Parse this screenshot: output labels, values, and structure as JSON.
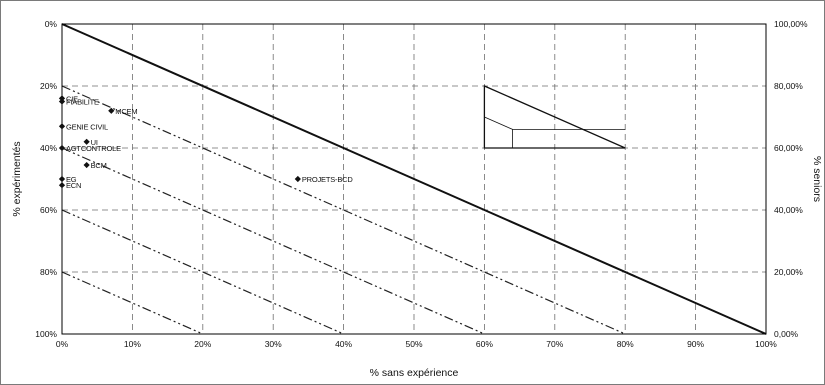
{
  "chart_data": {
    "type": "scatter",
    "xlabel": "% sans expérience",
    "ylabel": "% expérimentés",
    "y2label": "% seniors",
    "xlim": [
      0,
      100
    ],
    "ylim": [
      0,
      100
    ],
    "y_inverted": true,
    "x_ticks": [
      "0%",
      "10%",
      "20%",
      "30%",
      "40%",
      "50%",
      "60%",
      "70%",
      "80%",
      "90%",
      "100%"
    ],
    "y_ticks": [
      "0%",
      "20%",
      "40%",
      "60%",
      "80%",
      "100%"
    ],
    "y2_ticks": [
      "100,00%",
      "80,00%",
      "60,00%",
      "40,00%",
      "20,00%",
      "0,00%"
    ],
    "grid": true,
    "iso_lines_seniors": [
      80,
      60,
      40,
      20
    ],
    "points": [
      {
        "label": "CIE",
        "x": 0,
        "y": 24
      },
      {
        "label": "FIABILITE",
        "x": 0,
        "y": 25
      },
      {
        "label": "MCEM",
        "x": 7,
        "y": 28
      },
      {
        "label": "GENIE CIVIL",
        "x": 0,
        "y": 33
      },
      {
        "label": "UI",
        "x": 3.5,
        "y": 38
      },
      {
        "label": "AGTCONTROLE",
        "x": 0,
        "y": 40
      },
      {
        "label": "BCM",
        "x": 3.5,
        "y": 45.5
      },
      {
        "label": "PROJETS-BCD",
        "x": 33.5,
        "y": 50
      },
      {
        "label": "EG",
        "x": 0,
        "y": 50
      },
      {
        "label": "ECN",
        "x": 0,
        "y": 52
      }
    ]
  }
}
